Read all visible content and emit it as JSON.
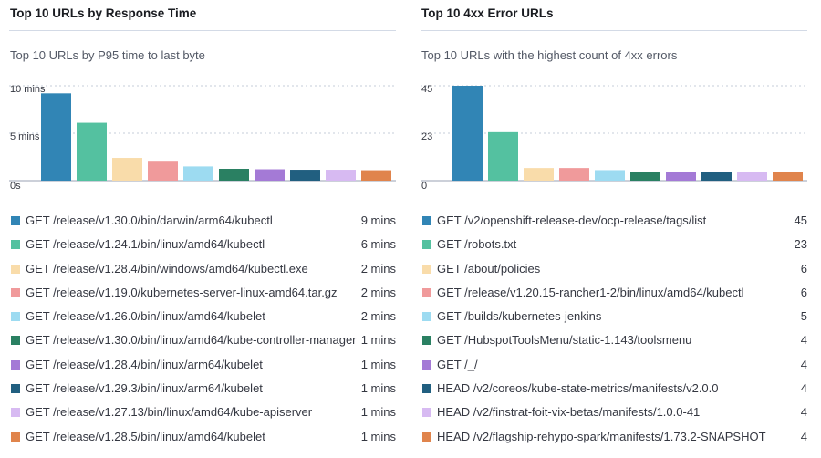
{
  "colors": [
    "#3185b5",
    "#54c1a0",
    "#f9dcaa",
    "#f09a9b",
    "#9ddbf1",
    "#2a8062",
    "#a47ad6",
    "#215f80",
    "#d7baf2",
    "#e0844c"
  ],
  "chart_data": [
    {
      "type": "bar",
      "title": "Top 10 URLs by Response Time",
      "subtitle": "Top 10 URLs by P95 time to last byte",
      "xlabel": "",
      "ylabel": "",
      "y_ticks": [
        "10 mins",
        "5 mins",
        "0s"
      ],
      "ylim": [
        0,
        10
      ],
      "grid": true,
      "legend_position": "bottom",
      "categories": [
        "GET /release/v1.30.0/bin/darwin/arm64/kubectl",
        "GET /release/v1.24.1/bin/linux/amd64/kubectl",
        "GET /release/v1.28.4/bin/windows/amd64/kubectl.exe",
        "GET /release/v1.19.0/kubernetes-server-linux-amd64.tar.gz",
        "GET /release/v1.26.0/bin/linux/amd64/kubelet",
        "GET /release/v1.30.0/bin/linux/amd64/kube-controller-manager",
        "GET /release/v1.28.4/bin/linux/arm64/kubelet",
        "GET /release/v1.29.3/bin/linux/arm64/kubelet",
        "GET /release/v1.27.13/bin/linux/amd64/kube-apiserver",
        "GET /release/v1.28.5/bin/linux/amd64/kubelet"
      ],
      "values": [
        9.2,
        6.1,
        2.4,
        2.0,
        1.5,
        1.25,
        1.2,
        1.15,
        1.15,
        1.1
      ],
      "value_labels": [
        "9 mins",
        "6 mins",
        "2 mins",
        "2 mins",
        "2 mins",
        "1 mins",
        "1 mins",
        "1 mins",
        "1 mins",
        "1 mins"
      ]
    },
    {
      "type": "bar",
      "title": "Top 10 4xx Error URLs",
      "subtitle": "Top 10 URLs with the highest count of 4xx errors",
      "xlabel": "",
      "ylabel": "",
      "y_ticks": [
        "45",
        "23",
        "0"
      ],
      "ylim": [
        0,
        45
      ],
      "grid": true,
      "legend_position": "bottom",
      "categories": [
        "GET /v2/openshift-release-dev/ocp-release/tags/list",
        "GET /robots.txt",
        "GET /about/policies",
        "GET /release/v1.20.15-rancher1-2/bin/linux/amd64/kubectl",
        "GET /builds/kubernetes-jenkins",
        "GET /HubspotToolsMenu/static-1.143/toolsmenu",
        "GET /_/",
        "HEAD /v2/coreos/kube-state-metrics/manifests/v2.0.0",
        "HEAD /v2/finstrat-foit-vix-betas/manifests/1.0.0-41",
        "HEAD /v2/flagship-rehypo-spark/manifests/1.73.2-SNAPSHOT"
      ],
      "values": [
        45,
        23,
        6,
        6,
        5,
        4,
        4,
        4,
        4,
        4
      ],
      "value_labels": [
        "45",
        "23",
        "6",
        "6",
        "5",
        "4",
        "4",
        "4",
        "4",
        "4"
      ]
    }
  ]
}
